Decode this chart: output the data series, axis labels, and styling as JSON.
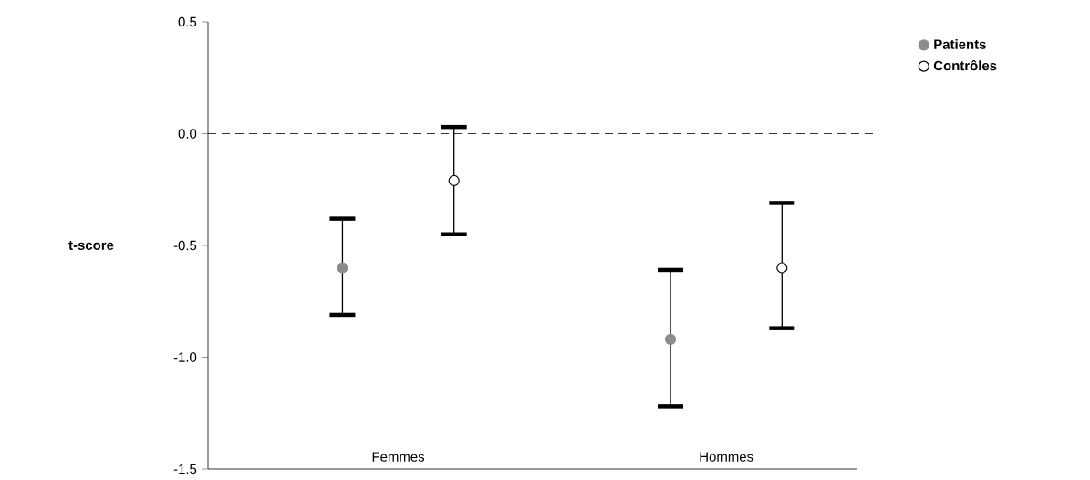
{
  "chart_data": {
    "type": "scatter",
    "ylabel": "t-score",
    "categories": [
      "Femmes",
      "Hommes"
    ],
    "series": [
      {
        "name": "Patients",
        "color": "#8c8c8c",
        "values": [
          -0.6,
          -0.92
        ],
        "errors": [
          [
            -0.81,
            -0.38
          ],
          [
            -1.22,
            -0.61
          ]
        ]
      },
      {
        "name": "Contrôles",
        "color": "#ffffff",
        "values": [
          -0.21,
          -0.6
        ],
        "errors": [
          [
            -0.45,
            0.03
          ],
          [
            -0.87,
            -0.31
          ]
        ]
      }
    ],
    "ylim": [
      -1.5,
      0.5
    ],
    "yticks": [
      {
        "value": -1.5,
        "label": "-1.5"
      },
      {
        "value": -1.0,
        "label": "-1.0"
      },
      -0.5,
      {
        "value": 0.0,
        "label": "0.0"
      },
      0.5
    ],
    "ref_lines": [
      {
        "axis": "y",
        "value": 0,
        "line_style": "dashed"
      }
    ],
    "legend": "top right",
    "marker": "circle"
  }
}
